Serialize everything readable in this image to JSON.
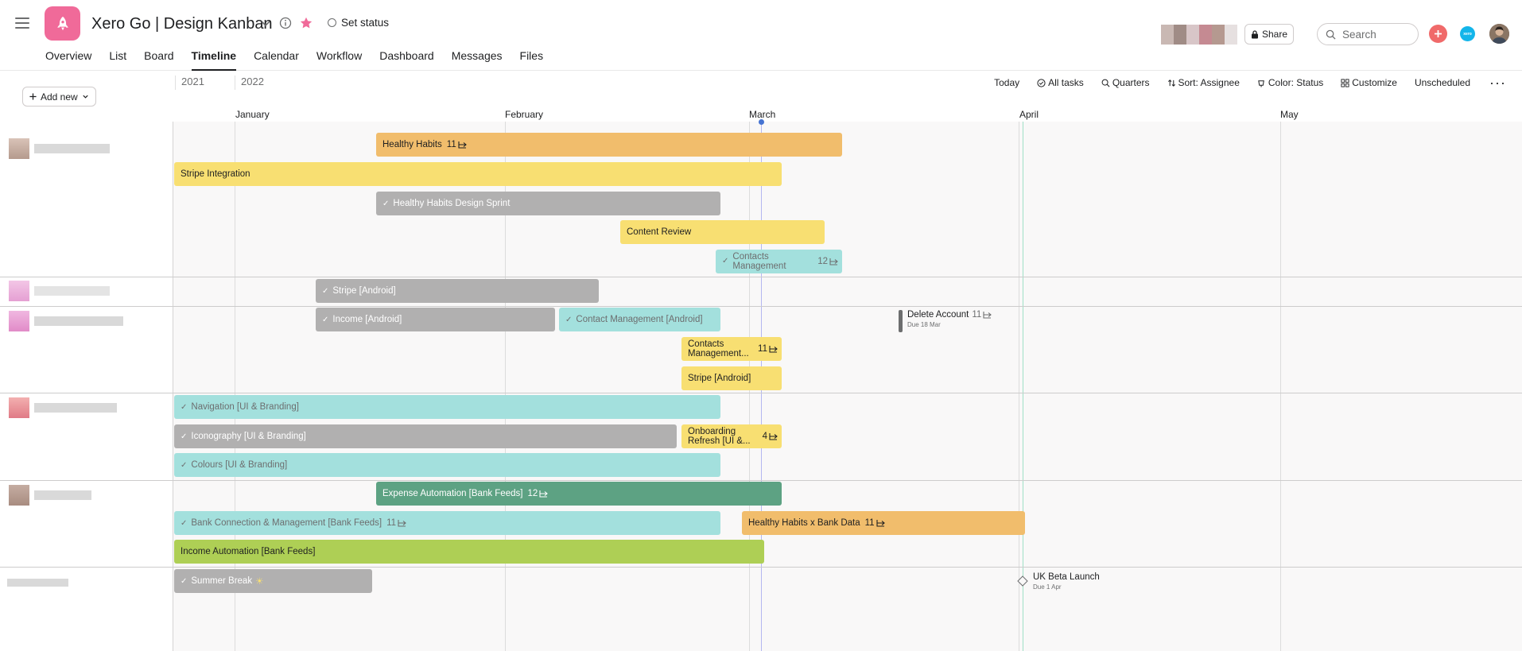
{
  "header": {
    "project_title": "Xero Go | Design Kanban",
    "set_status": "Set status",
    "share": "Share",
    "search_placeholder": "Search",
    "app_badge": "xero",
    "tabs": [
      "Overview",
      "List",
      "Board",
      "Timeline",
      "Calendar",
      "Workflow",
      "Dashboard",
      "Messages",
      "Files"
    ],
    "active_tab": "Timeline"
  },
  "toolbar": {
    "add_new": "Add new",
    "years": [
      "2021",
      "2022"
    ],
    "today": "Today",
    "all_tasks": "All tasks",
    "quarters": "Quarters",
    "sort": "Sort: Assignee",
    "color": "Color: Status",
    "customize": "Customize",
    "unscheduled": "Unscheduled"
  },
  "months": [
    "January",
    "February",
    "March",
    "April",
    "May"
  ],
  "status_colors": {
    "orange": "#f1bd6c",
    "yellow": "#f8df72",
    "grey": "#b1b0b0",
    "aqua": "#a3e0dd",
    "green": "#5da283",
    "lime": "#aecf55"
  },
  "tasks": [
    {
      "name": "Healthy Habits",
      "subtasks": "11"
    },
    {
      "name": "Stripe Integration"
    },
    {
      "name": "Healthy Habits Design Sprint",
      "done": true
    },
    {
      "name": "Content Review"
    },
    {
      "name": "Contacts Management",
      "subtasks": "12",
      "done": true
    },
    {
      "name": "Stripe [Android]",
      "done": true
    },
    {
      "name": "Income [Android]",
      "done": true
    },
    {
      "name": "Contact Management [Android]",
      "done": true
    },
    {
      "name": "Contacts Management...",
      "subtasks": "11"
    },
    {
      "name": "Stripe [Android]"
    },
    {
      "name": "Navigation [UI & Branding]",
      "done": true
    },
    {
      "name": "Iconography [UI & Branding]",
      "done": true
    },
    {
      "name": "Onboarding Refresh [UI &...",
      "subtasks": "4"
    },
    {
      "name": "Colours [UI & Branding]",
      "done": true
    },
    {
      "name": "Expense Automation [Bank Feeds]",
      "subtasks": "12"
    },
    {
      "name": "Bank Connection & Management [Bank Feeds]",
      "subtasks": "11",
      "done": true
    },
    {
      "name": "Healthy Habits x Bank Data",
      "subtasks": "11"
    },
    {
      "name": "Income Automation [Bank Feeds]"
    },
    {
      "name": "Summer Break",
      "emoji": "☀",
      "done": true
    }
  ],
  "milestones": [
    {
      "name": "Delete Account",
      "subtasks": "11",
      "due": "Due 18 Mar"
    },
    {
      "name": "UK Beta Launch",
      "due": "Due 1 Apr"
    }
  ]
}
